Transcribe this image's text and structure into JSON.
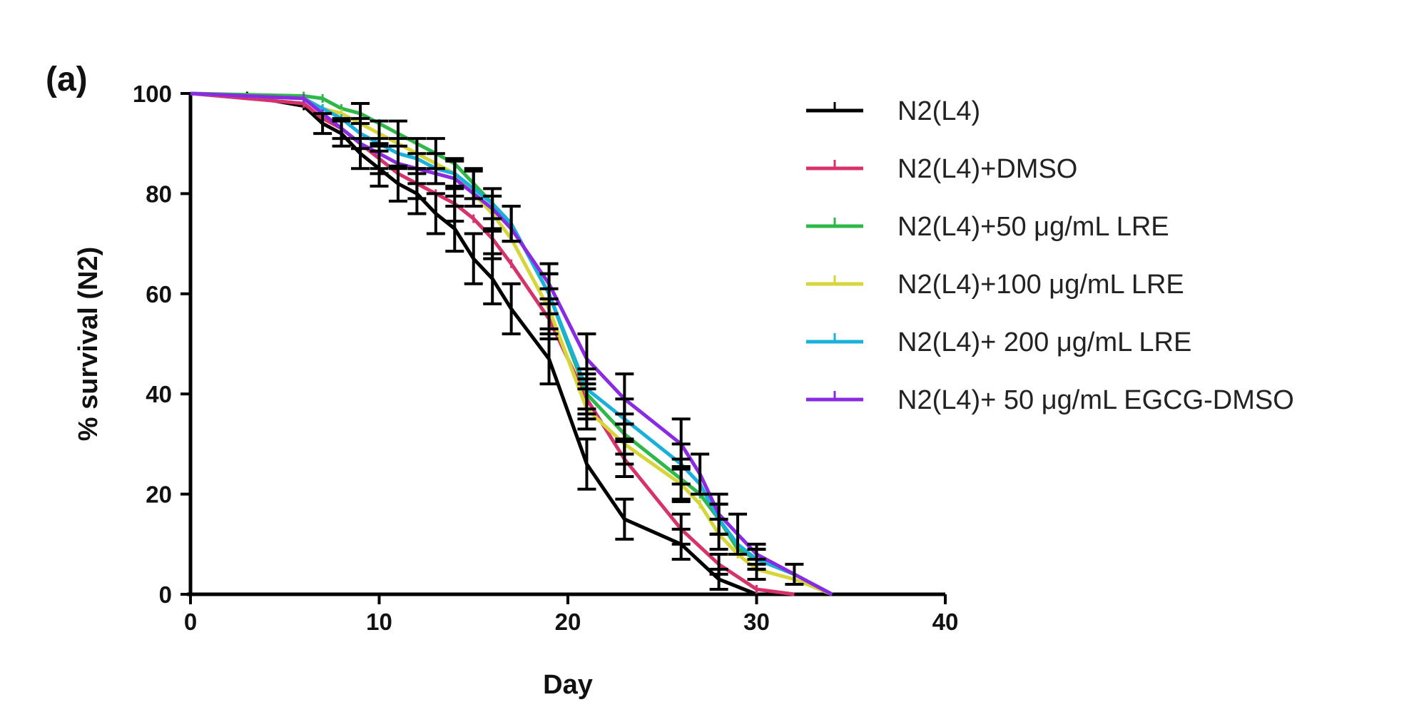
{
  "panel_label": "(a)",
  "chart_data": {
    "type": "line",
    "title": "",
    "xlabel": "Day",
    "ylabel": "% survival (N2)",
    "xlim": [
      0,
      40
    ],
    "ylim": [
      0,
      100
    ],
    "xticks": [
      0,
      10,
      20,
      30,
      40
    ],
    "yticks": [
      0,
      20,
      40,
      60,
      80,
      100
    ],
    "grid": false,
    "legend_position": "right",
    "series": [
      {
        "name": "N2(L4)",
        "color": "#000000",
        "points": [
          [
            0,
            100
          ],
          [
            3,
            99.5
          ],
          [
            6,
            97.5
          ],
          [
            7,
            94
          ],
          [
            8,
            92
          ],
          [
            9,
            88
          ],
          [
            10,
            85
          ],
          [
            11,
            82
          ],
          [
            12,
            80
          ],
          [
            13,
            76
          ],
          [
            14,
            73
          ],
          [
            15,
            67
          ],
          [
            16,
            63
          ],
          [
            17,
            57
          ],
          [
            19,
            47
          ],
          [
            21,
            26
          ],
          [
            23,
            15
          ],
          [
            26,
            10
          ],
          [
            28,
            3
          ],
          [
            30,
            0
          ]
        ],
        "errors": [
          [
            7,
            2
          ],
          [
            8,
            2.5
          ],
          [
            9,
            3
          ],
          [
            10,
            3.5
          ],
          [
            11,
            3.5
          ],
          [
            12,
            4
          ],
          [
            13,
            4
          ],
          [
            14,
            4.5
          ],
          [
            15,
            5
          ],
          [
            16,
            5
          ],
          [
            17,
            5
          ],
          [
            19,
            5
          ],
          [
            21,
            5
          ],
          [
            23,
            4
          ],
          [
            26,
            3
          ],
          [
            28,
            2
          ]
        ]
      },
      {
        "name": "N2(L4)+DMSO",
        "color": "#d6336c",
        "points": [
          [
            0,
            100
          ],
          [
            6,
            98
          ],
          [
            7,
            95
          ],
          [
            8,
            93
          ],
          [
            9,
            90
          ],
          [
            10,
            87
          ],
          [
            11,
            84
          ],
          [
            12,
            82
          ],
          [
            13,
            80
          ],
          [
            14,
            78
          ],
          [
            15,
            75
          ],
          [
            16,
            71
          ],
          [
            17,
            66
          ],
          [
            19,
            55
          ],
          [
            21,
            39
          ],
          [
            23,
            27
          ],
          [
            26,
            13
          ],
          [
            28,
            6
          ],
          [
            30,
            1
          ],
          [
            32,
            0
          ]
        ],
        "errors": [
          [
            8,
            2
          ],
          [
            10,
            3
          ],
          [
            12,
            3
          ],
          [
            14,
            3.5
          ],
          [
            16,
            4
          ],
          [
            19,
            4
          ],
          [
            21,
            4
          ],
          [
            23,
            3.5
          ],
          [
            26,
            3
          ],
          [
            28,
            2
          ]
        ]
      },
      {
        "name": "N2(L4)+50 μg/mL LRE",
        "color": "#2fb84a",
        "points": [
          [
            0,
            100
          ],
          [
            6,
            99.5
          ],
          [
            7,
            99
          ],
          [
            8,
            97
          ],
          [
            9,
            96
          ],
          [
            10,
            94
          ],
          [
            11,
            92
          ],
          [
            12,
            90
          ],
          [
            13,
            88
          ],
          [
            14,
            86
          ],
          [
            15,
            82
          ],
          [
            16,
            78
          ],
          [
            17,
            74
          ],
          [
            19,
            60
          ],
          [
            21,
            40
          ],
          [
            23,
            32
          ],
          [
            26,
            23
          ],
          [
            27,
            20
          ],
          [
            28,
            15
          ],
          [
            29,
            9
          ],
          [
            30,
            7
          ],
          [
            32,
            4
          ],
          [
            34,
            0
          ]
        ],
        "errors": [
          [
            9,
            2
          ],
          [
            11,
            2.5
          ],
          [
            13,
            3
          ],
          [
            15,
            3
          ],
          [
            17,
            3.5
          ],
          [
            19,
            4
          ],
          [
            21,
            4
          ],
          [
            23,
            4
          ],
          [
            26,
            4
          ],
          [
            28,
            3
          ],
          [
            30,
            2
          ]
        ]
      },
      {
        "name": "N2(L4)+100 μg/mL LRE",
        "color": "#d6d63a",
        "points": [
          [
            0,
            100
          ],
          [
            6,
            99
          ],
          [
            7,
            97
          ],
          [
            8,
            96
          ],
          [
            9,
            94
          ],
          [
            10,
            92
          ],
          [
            11,
            90
          ],
          [
            12,
            88
          ],
          [
            13,
            86
          ],
          [
            14,
            84
          ],
          [
            15,
            80
          ],
          [
            16,
            76
          ],
          [
            17,
            71
          ],
          [
            19,
            57
          ],
          [
            21,
            37
          ],
          [
            23,
            30
          ],
          [
            26,
            22
          ],
          [
            27,
            18
          ],
          [
            28,
            12
          ],
          [
            29,
            8
          ],
          [
            30,
            5
          ],
          [
            32,
            3
          ],
          [
            34,
            0
          ]
        ],
        "errors": [
          [
            10,
            2.5
          ],
          [
            12,
            3
          ],
          [
            14,
            3
          ],
          [
            16,
            3.5
          ],
          [
            19,
            4
          ],
          [
            21,
            4
          ],
          [
            23,
            4
          ],
          [
            26,
            3.5
          ],
          [
            28,
            3
          ],
          [
            30,
            2
          ]
        ]
      },
      {
        "name": "N2(L4)+ 200 μg/mL LRE",
        "color": "#19b0dc",
        "points": [
          [
            0,
            100
          ],
          [
            6,
            99
          ],
          [
            7,
            97
          ],
          [
            8,
            95
          ],
          [
            9,
            92
          ],
          [
            10,
            90
          ],
          [
            11,
            88
          ],
          [
            12,
            87
          ],
          [
            13,
            85
          ],
          [
            14,
            84
          ],
          [
            15,
            81
          ],
          [
            16,
            78
          ],
          [
            17,
            74
          ],
          [
            19,
            60
          ],
          [
            21,
            41
          ],
          [
            23,
            35
          ],
          [
            26,
            26
          ],
          [
            27,
            22
          ],
          [
            28,
            15
          ],
          [
            29,
            10
          ],
          [
            30,
            7
          ],
          [
            32,
            4
          ],
          [
            34,
            0
          ]
        ],
        "errors": [
          [
            9,
            3
          ],
          [
            11,
            3
          ],
          [
            13,
            3
          ],
          [
            15,
            3.5
          ],
          [
            17,
            3.5
          ],
          [
            19,
            4
          ],
          [
            21,
            4
          ],
          [
            23,
            4
          ],
          [
            26,
            4
          ],
          [
            28,
            3
          ],
          [
            30,
            2
          ]
        ]
      },
      {
        "name": "N2(L4)+ 50 μg/mL EGCG-DMSO",
        "color": "#8a2be2",
        "points": [
          [
            0,
            100
          ],
          [
            6,
            99
          ],
          [
            7,
            96
          ],
          [
            8,
            93
          ],
          [
            9,
            90
          ],
          [
            10,
            88
          ],
          [
            11,
            86
          ],
          [
            12,
            85
          ],
          [
            13,
            84
          ],
          [
            14,
            83
          ],
          [
            15,
            80
          ],
          [
            16,
            77
          ],
          [
            17,
            73
          ],
          [
            19,
            62
          ],
          [
            21,
            47
          ],
          [
            23,
            39
          ],
          [
            26,
            30
          ],
          [
            27,
            24
          ],
          [
            28,
            16
          ],
          [
            29,
            12
          ],
          [
            30,
            8
          ],
          [
            32,
            4
          ],
          [
            34,
            0
          ]
        ],
        "errors": [
          [
            10,
            3
          ],
          [
            12,
            3
          ],
          [
            14,
            3.5
          ],
          [
            16,
            4
          ],
          [
            19,
            4
          ],
          [
            21,
            5
          ],
          [
            23,
            5
          ],
          [
            26,
            5
          ],
          [
            27,
            4
          ],
          [
            28,
            4
          ],
          [
            29,
            4
          ],
          [
            30,
            2
          ],
          [
            32,
            2
          ]
        ]
      }
    ]
  }
}
